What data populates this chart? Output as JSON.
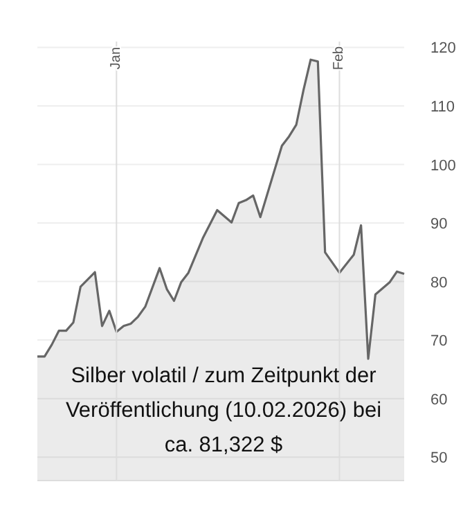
{
  "chart_data": {
    "type": "area",
    "x": [
      "2025-12-21",
      "2025-12-22",
      "2025-12-23",
      "2025-12-24",
      "2025-12-25",
      "2025-12-26",
      "2025-12-27",
      "2025-12-29",
      "2025-12-30",
      "2025-12-31",
      "2026-01-01",
      "2026-01-02",
      "2026-01-03",
      "2026-01-04",
      "2026-01-05",
      "2026-01-07",
      "2026-01-08",
      "2026-01-09",
      "2026-01-10",
      "2026-01-11",
      "2026-01-13",
      "2026-01-15",
      "2026-01-17",
      "2026-01-18",
      "2026-01-19",
      "2026-01-20",
      "2026-01-21",
      "2026-01-24",
      "2026-01-25",
      "2026-01-26",
      "2026-01-27",
      "2026-01-28",
      "2026-01-29",
      "2026-01-30",
      "2026-02-01",
      "2026-02-03",
      "2026-02-04",
      "2026-02-05",
      "2026-02-06",
      "2026-02-08",
      "2026-02-09",
      "2026-02-10"
    ],
    "series": [
      {
        "color": "#666666",
        "values": [
          67.2,
          67.2,
          69.2,
          71.6,
          71.6,
          73.0,
          79.1,
          81.6,
          72.4,
          75.0,
          71.4,
          72.4,
          72.8,
          74.0,
          75.7,
          82.3,
          78.7,
          76.7,
          79.9,
          81.5,
          87.4,
          92.2,
          90.1,
          93.4,
          93.9,
          94.7,
          91.0,
          103.2,
          104.8,
          106.8,
          112.7,
          117.9,
          117.6,
          85.0,
          81.5,
          84.6,
          89.6,
          66.8,
          77.8,
          79.9,
          81.7,
          81.3
        ]
      }
    ],
    "xlim": [
      "2025-12-21",
      "2026-02-10"
    ],
    "xticks": [
      {
        "value": "2026-01-01",
        "label": "Jan"
      },
      {
        "value": "2026-02-01",
        "label": "Feb"
      }
    ],
    "ylim": [
      46,
      121
    ],
    "yticks": [
      50,
      60,
      70,
      80,
      90,
      100,
      110,
      120
    ],
    "grid": true,
    "annotations": [
      "Silber volatil / zum Zeitpunkt der\nVeröffentlichung (10.02.2026) bei\nca. 81,322 $"
    ]
  }
}
